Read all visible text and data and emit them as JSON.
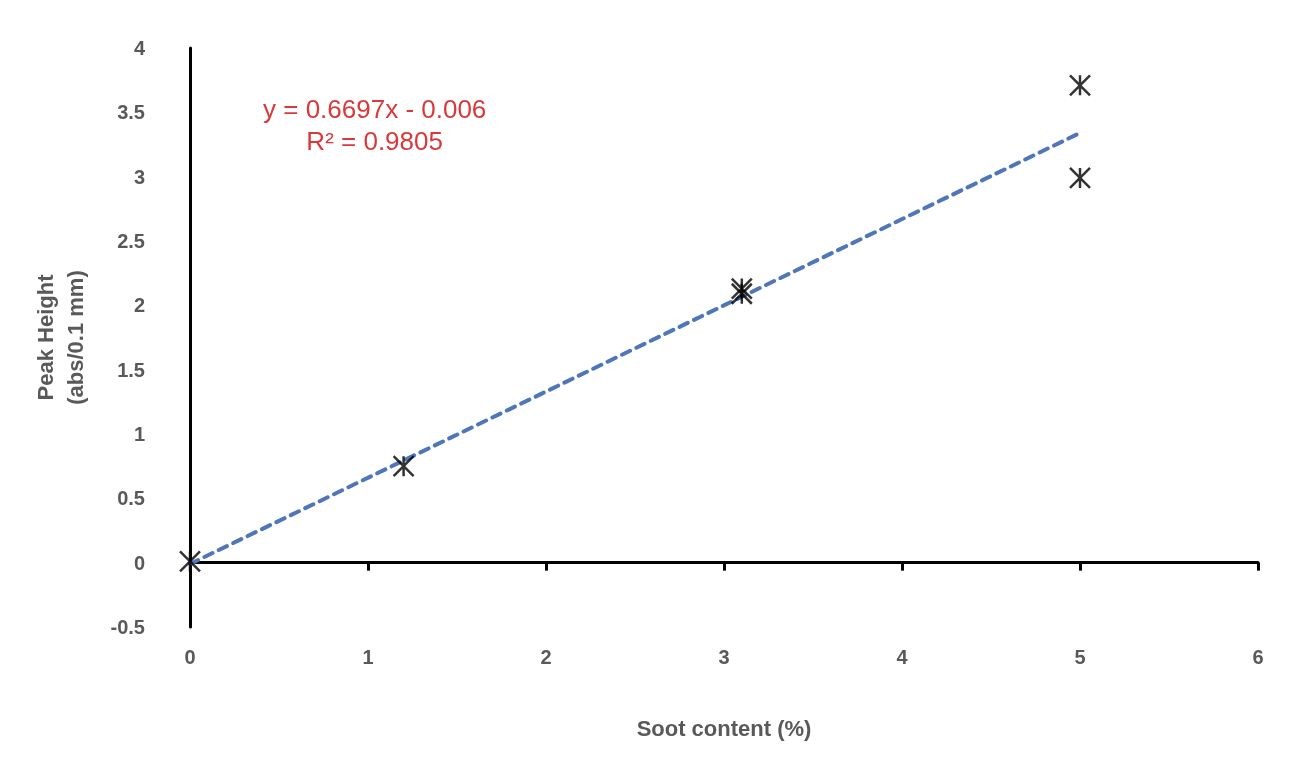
{
  "chart_data": {
    "type": "scatter",
    "xlabel": "Soot content (%)",
    "ylabel": "Peak Height\n(abs/0.1 mm)",
    "series": [
      {
        "color": "#000000",
        "x": [
          0,
          1.2,
          3.1,
          3.1,
          5,
          5
        ],
        "values": [
          0.01,
          0.75,
          2.13,
          2.09,
          3.71,
          2.99
        ],
        "marker": "cross"
      },
      {
        "type": "line",
        "color": "#4f76b9",
        "x": [
          0,
          5
        ],
        "values": [
          -0.01,
          3.34
        ],
        "line_style": "dashed",
        "marker": "none"
      }
    ],
    "annotations": [
      "y = 0.6697x - 0.006\nR² = 0.9805"
    ],
    "xlim": [
      0,
      6
    ],
    "xticks": [
      0,
      1,
      2,
      3,
      4,
      5,
      6
    ],
    "ylim": [
      -0.5,
      4
    ],
    "yticks": [
      -0.5,
      0,
      0.5,
      1,
      1.5,
      2,
      2.5,
      3,
      3.5,
      4
    ]
  }
}
